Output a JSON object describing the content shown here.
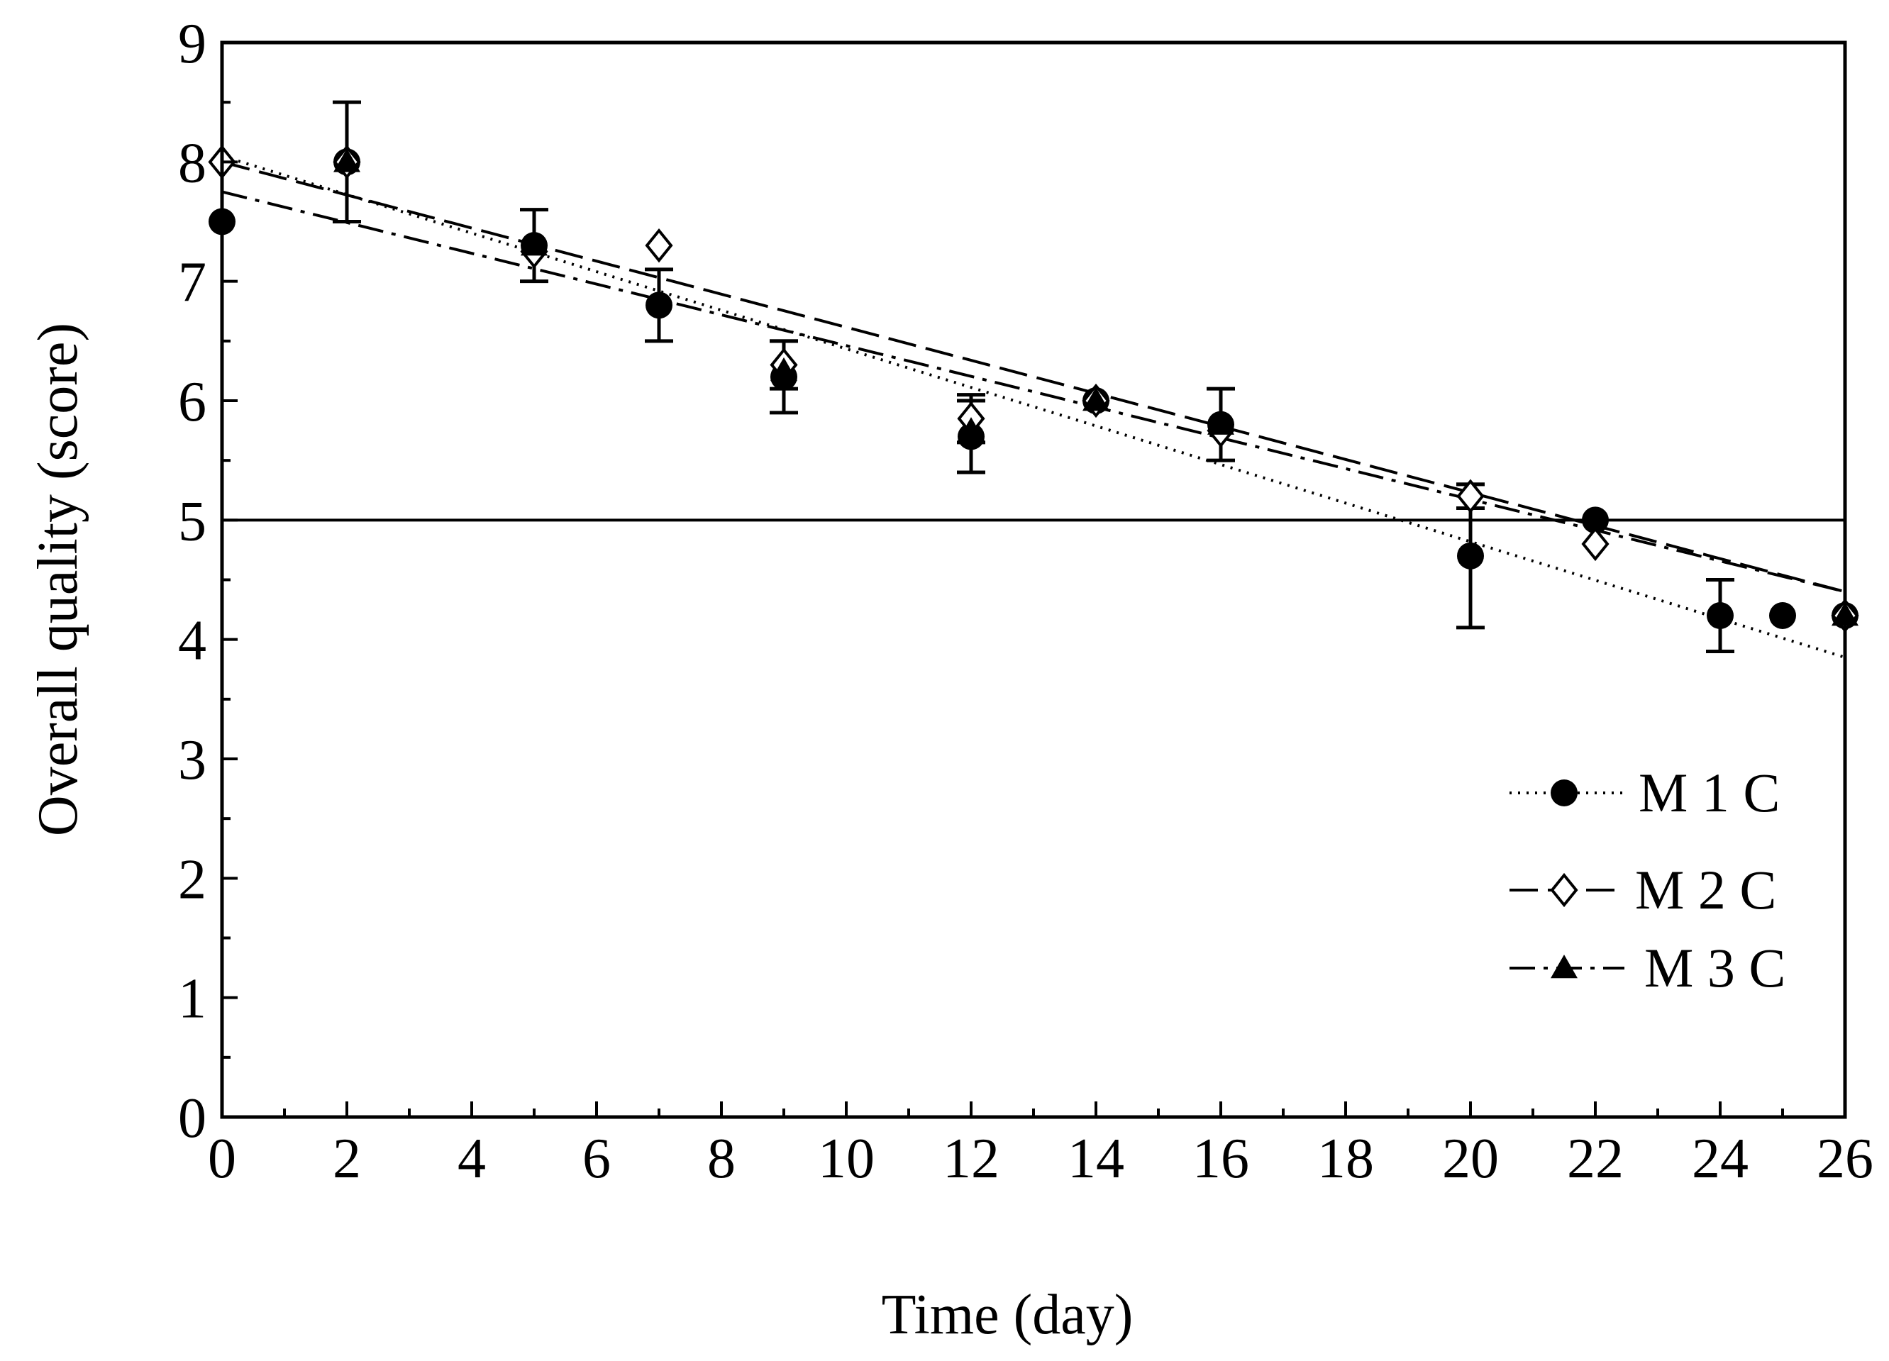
{
  "chart_data": {
    "type": "scatter",
    "title": "",
    "xlabel": "Time (day)",
    "ylabel": "Overall quality (score)",
    "xlim": [
      0,
      26
    ],
    "ylim": [
      0,
      9
    ],
    "xticks": [
      "0",
      "2",
      "4",
      "6",
      "8",
      "10",
      "12",
      "14",
      "16",
      "18",
      "20",
      "22",
      "24",
      "26"
    ],
    "yticks": [
      "0",
      "1",
      "2",
      "3",
      "4",
      "5",
      "6",
      "7",
      "8",
      "9"
    ],
    "reference_line": {
      "y": 5
    },
    "series": [
      {
        "name": "M 1 C",
        "marker": "filled-circle",
        "line_style": "dotted",
        "points": [
          {
            "x": 0,
            "y": 7.5
          },
          {
            "x": 2,
            "y": 8.0,
            "err": 0.5
          },
          {
            "x": 5,
            "y": 7.3
          },
          {
            "x": 7,
            "y": 6.8,
            "err": 0.3
          },
          {
            "x": 9,
            "y": 6.2,
            "err": 0.3
          },
          {
            "x": 12,
            "y": 5.7,
            "err": 0.3
          },
          {
            "x": 14,
            "y": 6.0
          },
          {
            "x": 16,
            "y": 5.8
          },
          {
            "x": 20,
            "y": 4.7,
            "err": 0.6
          },
          {
            "x": 22,
            "y": 5.0
          },
          {
            "x": 24,
            "y": 4.2,
            "err": 0.3
          },
          {
            "x": 25,
            "y": 4.2
          },
          {
            "x": 26,
            "y": 4.2
          }
        ],
        "fit": {
          "x": [
            0,
            26
          ],
          "y": [
            8.05,
            3.85
          ]
        }
      },
      {
        "name": "M 2  C",
        "marker": "open-diamond",
        "line_style": "dashed",
        "points": [
          {
            "x": 0,
            "y": 8.0
          },
          {
            "x": 2,
            "y": 8.0
          },
          {
            "x": 5,
            "y": 7.25
          },
          {
            "x": 7,
            "y": 7.3
          },
          {
            "x": 9,
            "y": 6.3,
            "err": 0.2
          },
          {
            "x": 12,
            "y": 5.85,
            "err": 0.2
          },
          {
            "x": 14,
            "y": 6.0
          },
          {
            "x": 16,
            "y": 5.75
          },
          {
            "x": 20,
            "y": 5.2,
            "err": 0.1
          },
          {
            "x": 22,
            "y": 4.8
          },
          {
            "x": 26,
            "y": 4.2
          }
        ],
        "fit": {
          "x": [
            0,
            26
          ],
          "y": [
            8.0,
            4.4
          ]
        }
      },
      {
        "name": "M 3  C",
        "marker": "filled-triangle",
        "line_style": "dash-dot",
        "points": [
          {
            "x": 2,
            "y": 8.0
          },
          {
            "x": 5,
            "y": 7.3,
            "err": 0.3
          },
          {
            "x": 9,
            "y": 6.25
          },
          {
            "x": 12,
            "y": 5.75
          },
          {
            "x": 14,
            "y": 6.0
          },
          {
            "x": 16,
            "y": 5.8,
            "err": 0.3
          },
          {
            "x": 26,
            "y": 4.2
          }
        ],
        "fit": {
          "x": [
            0,
            26
          ],
          "y": [
            7.75,
            4.4
          ]
        }
      }
    ],
    "legend": {
      "position": "right",
      "entries": [
        "M 1 C",
        "M 2  C",
        "M 3  C"
      ]
    }
  }
}
